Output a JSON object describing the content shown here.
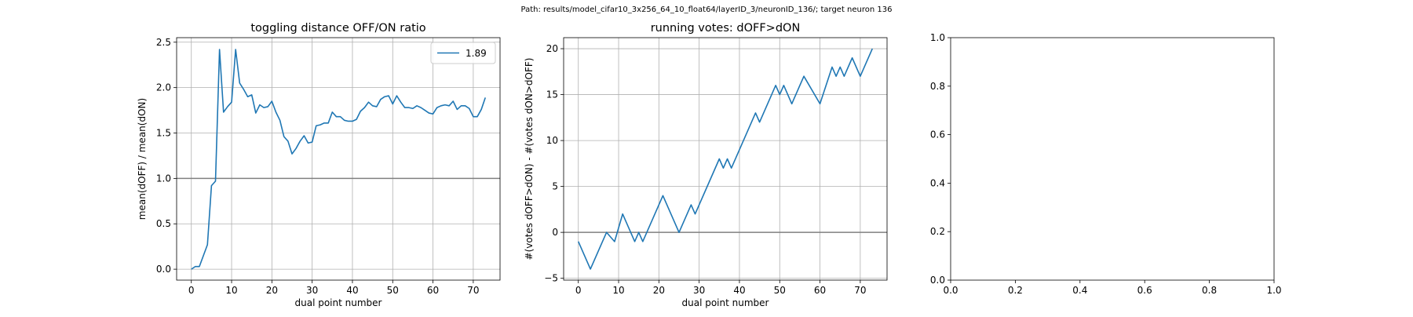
{
  "suptitle": "Path: results/model_cifar10_3x256_64_10_float64/layerID_3/neuronID_136/; target neuron 136",
  "colors": {
    "line": "#1f77b4",
    "grid": "#b0b0b0",
    "hline": "#808080"
  },
  "chart_data": [
    {
      "type": "line",
      "title": "toggling distance OFF/ON ratio",
      "xlabel": "dual point number",
      "ylabel": "mean(dOFF) / mean(dON)",
      "xlim": [
        -3.65,
        76.65
      ],
      "ylim": [
        -0.12,
        2.55
      ],
      "xticks": [
        0,
        10,
        20,
        30,
        40,
        50,
        60,
        70
      ],
      "yticks": [
        0.0,
        0.5,
        1.0,
        1.5,
        2.0,
        2.5
      ],
      "ytick_labels": [
        "0.0",
        "0.5",
        "1.0",
        "1.5",
        "2.0",
        "2.5"
      ],
      "grid": true,
      "hline": 1.0,
      "legend": {
        "position": "top-right",
        "entries": [
          "1.89"
        ]
      },
      "series": [
        {
          "name": "1.89",
          "x": [
            0,
            1,
            2,
            3,
            4,
            5,
            6,
            7,
            8,
            9,
            10,
            11,
            12,
            13,
            14,
            15,
            16,
            17,
            18,
            19,
            20,
            21,
            22,
            23,
            24,
            25,
            26,
            27,
            28,
            29,
            30,
            31,
            32,
            33,
            34,
            35,
            36,
            37,
            38,
            39,
            40,
            41,
            42,
            43,
            44,
            45,
            46,
            47,
            48,
            49,
            50,
            51,
            52,
            53,
            54,
            55,
            56,
            57,
            58,
            59,
            60,
            61,
            62,
            63,
            64,
            65,
            66,
            67,
            68,
            69,
            70,
            71,
            72,
            73
          ],
          "values": [
            0.0,
            0.03,
            0.03,
            0.15,
            0.27,
            0.92,
            0.97,
            2.42,
            1.73,
            1.79,
            1.84,
            2.42,
            2.05,
            1.98,
            1.9,
            1.92,
            1.72,
            1.81,
            1.78,
            1.79,
            1.85,
            1.73,
            1.64,
            1.46,
            1.41,
            1.27,
            1.33,
            1.41,
            1.47,
            1.39,
            1.4,
            1.58,
            1.59,
            1.61,
            1.61,
            1.73,
            1.68,
            1.68,
            1.64,
            1.63,
            1.63,
            1.65,
            1.74,
            1.78,
            1.84,
            1.8,
            1.79,
            1.87,
            1.9,
            1.91,
            1.82,
            1.91,
            1.84,
            1.78,
            1.78,
            1.77,
            1.8,
            1.78,
            1.75,
            1.72,
            1.71,
            1.78,
            1.8,
            1.81,
            1.8,
            1.85,
            1.76,
            1.8,
            1.8,
            1.77,
            1.68,
            1.68,
            1.76,
            1.89
          ]
        }
      ]
    },
    {
      "type": "line",
      "title": "running votes: dOFF>dON",
      "xlabel": "dual point number",
      "ylabel": "#(votes dOFF>dON) - #(votes dON>dOFF)",
      "xlim": [
        -3.65,
        76.65
      ],
      "ylim": [
        -5.2,
        21.2
      ],
      "xticks": [
        0,
        10,
        20,
        30,
        40,
        50,
        60,
        70
      ],
      "yticks": [
        -5,
        0,
        5,
        10,
        15,
        20
      ],
      "ytick_labels": [
        "−5",
        "0",
        "5",
        "10",
        "15",
        "20"
      ],
      "grid": true,
      "hline": 0,
      "series": [
        {
          "x": [
            0,
            3,
            7,
            9,
            11,
            14,
            15,
            16,
            21,
            25,
            28,
            29,
            35,
            36,
            37,
            38,
            44,
            45,
            49,
            50,
            51,
            53,
            56,
            60,
            63,
            64,
            65,
            66,
            68,
            70,
            73
          ],
          "values": [
            -1,
            -4,
            0,
            -1,
            2,
            -1,
            0,
            -1,
            4,
            0,
            3,
            2,
            8,
            7,
            8,
            7,
            13,
            12,
            16,
            15,
            16,
            14,
            17,
            14,
            18,
            17,
            18,
            17,
            19,
            17,
            20
          ]
        }
      ]
    },
    {
      "type": "line",
      "title": "",
      "xlabel": "",
      "ylabel": "",
      "xlim": [
        0,
        1
      ],
      "ylim": [
        0,
        1
      ],
      "xticks": [
        0.0,
        0.2,
        0.4,
        0.6,
        0.8,
        1.0
      ],
      "yticks": [
        0.0,
        0.2,
        0.4,
        0.6,
        0.8,
        1.0
      ],
      "xtick_labels": [
        "0.0",
        "0.2",
        "0.4",
        "0.6",
        "0.8",
        "1.0"
      ],
      "ytick_labels": [
        "0.0",
        "0.2",
        "0.4",
        "0.6",
        "0.8",
        "1.0"
      ],
      "grid": false,
      "series": []
    }
  ]
}
